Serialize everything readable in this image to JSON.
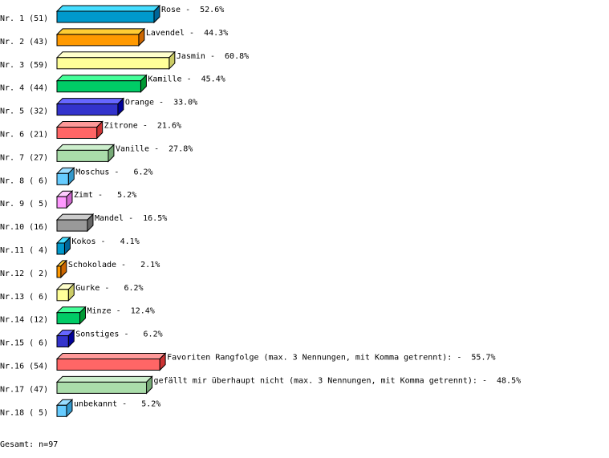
{
  "chart_data": {
    "type": "bar",
    "orientation": "horizontal",
    "style": "3d",
    "categories": [
      "Nr. 1 (51)",
      "Nr. 2 (43)",
      "Nr. 3 (59)",
      "Nr. 4 (44)",
      "Nr. 5 (32)",
      "Nr. 6 (21)",
      "Nr. 7 (27)",
      "Nr. 8 ( 6)",
      "Nr. 9 ( 5)",
      "Nr.10 (16)",
      "Nr.11 ( 4)",
      "Nr.12 ( 2)",
      "Nr.13 ( 6)",
      "Nr.14 (12)",
      "Nr.15 ( 6)",
      "Nr.16 (54)",
      "Nr.17 (47)",
      "Nr.18 ( 5)"
    ],
    "names": [
      "Rose",
      "Lavendel",
      "Jasmin",
      "Kamille",
      "Orange",
      "Zitrone",
      "Vanille",
      "Moschus",
      "Zimt",
      "Mandel",
      "Kokos",
      "Schokolade",
      "Gurke",
      "Minze",
      "Sonstiges",
      "Favoriten Rangfolge (max. 3 Nennungen, mit Komma getrennt):",
      "gefällt mir überhaupt nicht (max. 3 Nennungen, mit Komma getrennt):",
      "unbekannt"
    ],
    "bar_labels": [
      "Rose -  52.6%",
      "Lavendel -  44.3%",
      "Jasmin -  60.8%",
      "Kamille -  45.4%",
      "Orange -  33.0%",
      "Zitrone -  21.6%",
      "Vanille -  27.8%",
      "Moschus -   6.2%",
      "Zimt -   5.2%",
      "Mandel -  16.5%",
      "Kokos -   4.1%",
      "Schokolade -   2.1%",
      "Gurke -   6.2%",
      "Minze -  12.4%",
      "Sonstiges -   6.2%",
      "Favoriten Rangfolge (max. 3 Nennungen, mit Komma getrennt): -  55.7%",
      "gefällt mir überhaupt nicht (max. 3 Nennungen, mit Komma getrennt): -  48.5%",
      "unbekannt -   5.2%"
    ],
    "counts": [
      51,
      43,
      59,
      44,
      32,
      21,
      27,
      6,
      5,
      16,
      4,
      2,
      6,
      12,
      6,
      54,
      47,
      5
    ],
    "values": [
      52.6,
      44.3,
      60.8,
      45.4,
      33.0,
      21.6,
      27.8,
      6.2,
      5.2,
      16.5,
      4.1,
      2.1,
      6.2,
      12.4,
      6.2,
      55.7,
      48.5,
      5.2
    ],
    "unit": "%",
    "footer": "Gesamt: n=97",
    "colors": [
      {
        "front": "#0099cc",
        "top": "#44ddff",
        "side": "#006699"
      },
      {
        "front": "#ff9900",
        "top": "#ffcc33",
        "side": "#cc6600"
      },
      {
        "front": "#ffff99",
        "top": "#ffffcc",
        "side": "#cccc66"
      },
      {
        "front": "#00cc66",
        "top": "#44ff99",
        "side": "#009933"
      },
      {
        "front": "#3333cc",
        "top": "#6666ff",
        "side": "#000099"
      },
      {
        "front": "#ff6666",
        "top": "#ff9999",
        "side": "#cc3333"
      },
      {
        "front": "#aaddaa",
        "top": "#cceecc",
        "side": "#77aa77"
      },
      {
        "front": "#66ccff",
        "top": "#99ddff",
        "side": "#3399cc"
      },
      {
        "front": "#ff99ff",
        "top": "#ffccff",
        "side": "#cc66cc"
      },
      {
        "front": "#999999",
        "top": "#cccccc",
        "side": "#666666"
      }
    ]
  }
}
